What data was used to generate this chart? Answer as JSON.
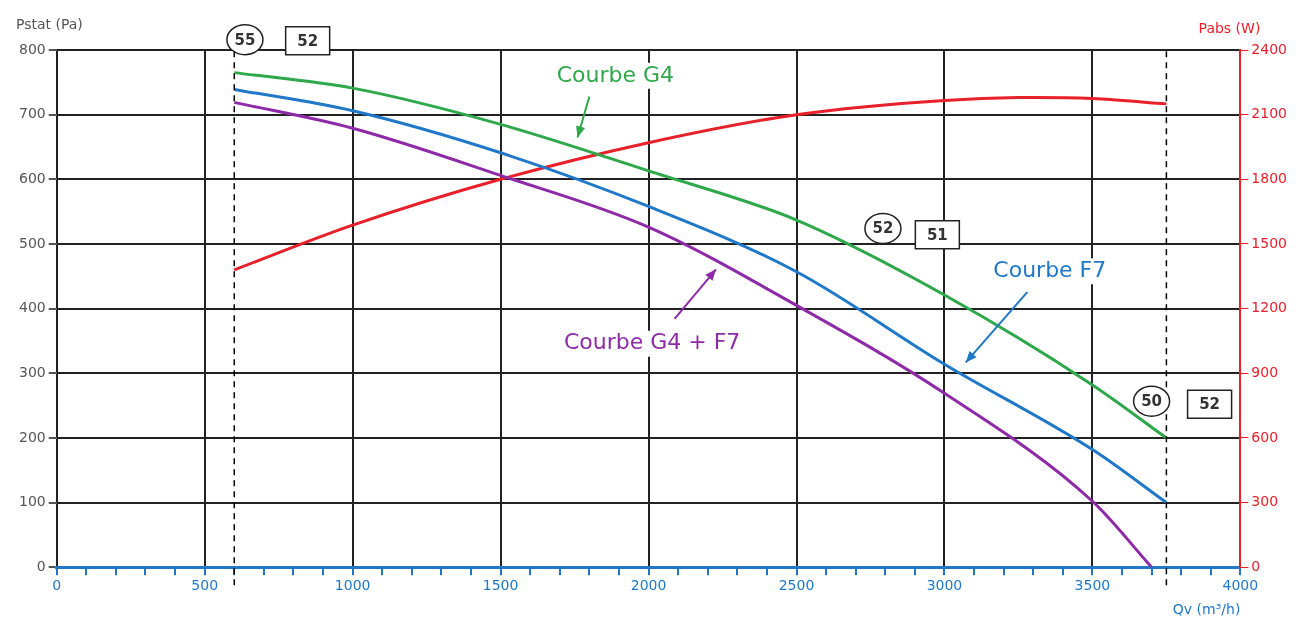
{
  "chart_data": {
    "type": "line",
    "xlabel": "Qv (m³/h)",
    "ylabel": "Pstat (Pa)",
    "y2label": "Pabs (W)",
    "x": [
      600,
      1000,
      1500,
      2000,
      2500,
      3000,
      3500,
      3750
    ],
    "series": [
      {
        "color": "#2ea84a",
        "values": [
          765,
          741,
          685,
          613,
          537,
          421,
          282,
          200
        ]
      },
      {
        "color": "#1f78c8",
        "values": [
          739,
          706,
          641,
          558,
          457,
          314,
          182,
          100
        ]
      },
      {
        "color": "#8e2aa8",
        "x": [
          600,
          1000,
          1500,
          2000,
          2500,
          3000,
          3500,
          3700
        ],
        "values": [
          719,
          679,
          606,
          526,
          405,
          269,
          102,
          0
        ]
      },
      {
        "color": "#e8202a",
        "axis": "y2",
        "x": [
          600,
          1000,
          1500,
          2000,
          2500,
          3000,
          3300,
          3500,
          3750
        ],
        "values": [
          1380,
          1587,
          1800,
          1970,
          2100,
          2166,
          2180,
          2175,
          2150
        ]
      }
    ],
    "xlim": [
      0,
      4000
    ],
    "xticks": [
      0,
      {
        "value": 100,
        "label": null
      },
      {
        "value": 200,
        "label": null
      },
      {
        "value": 300,
        "label": null
      },
      {
        "value": 400,
        "label": null
      },
      500,
      {
        "value": 600,
        "label": null
      },
      {
        "value": 700,
        "label": null
      },
      {
        "value": 800,
        "label": null
      },
      {
        "value": 900,
        "label": null
      },
      1000,
      {
        "value": 1100,
        "label": null
      },
      {
        "value": 1200,
        "label": null
      },
      {
        "value": 1300,
        "label": null
      },
      {
        "value": 1400,
        "label": null
      },
      1500,
      {
        "value": 1600,
        "label": null
      },
      {
        "value": 1700,
        "label": null
      },
      {
        "value": 1800,
        "label": null
      },
      {
        "value": 1900,
        "label": null
      },
      2000,
      {
        "value": 2100,
        "label": null
      },
      {
        "value": 2200,
        "label": null
      },
      {
        "value": 2300,
        "label": null
      },
      {
        "value": 2400,
        "label": null
      },
      2500,
      {
        "value": 2600,
        "label": null
      },
      {
        "value": 2700,
        "label": null
      },
      {
        "value": 2800,
        "label": null
      },
      {
        "value": 2900,
        "label": null
      },
      3000,
      {
        "value": 3100,
        "label": null
      },
      {
        "value": 3200,
        "label": null
      },
      {
        "value": 3300,
        "label": null
      },
      {
        "value": 3400,
        "label": null
      },
      3500,
      {
        "value": 3600,
        "label": null
      },
      {
        "value": 3700,
        "label": null
      },
      {
        "value": 3800,
        "label": null
      },
      {
        "value": 3900,
        "label": null
      },
      4000
    ],
    "ylim": [
      0,
      800
    ],
    "yticks": [
      0,
      100,
      200,
      300,
      400,
      500,
      600,
      700,
      800
    ],
    "y2lim": [
      0,
      2400
    ],
    "y2ticks": [
      0,
      300,
      600,
      900,
      1200,
      1500,
      1800,
      2100,
      2400
    ],
    "ref_lines": [
      {
        "axis": "x",
        "value": 600,
        "color": "#000000",
        "line_style": "dashed"
      },
      {
        "axis": "x",
        "value": 3750,
        "color": "#000000",
        "line_style": "dashed"
      }
    ],
    "annotations": [
      "Courbe G4",
      "Courbe F7",
      "Courbe G4 + F7",
      "55",
      "52",
      "52",
      "51",
      "50",
      "52"
    ],
    "grid": true,
    "legend": false,
    "marker": "none",
    "line_style": "solid"
  }
}
